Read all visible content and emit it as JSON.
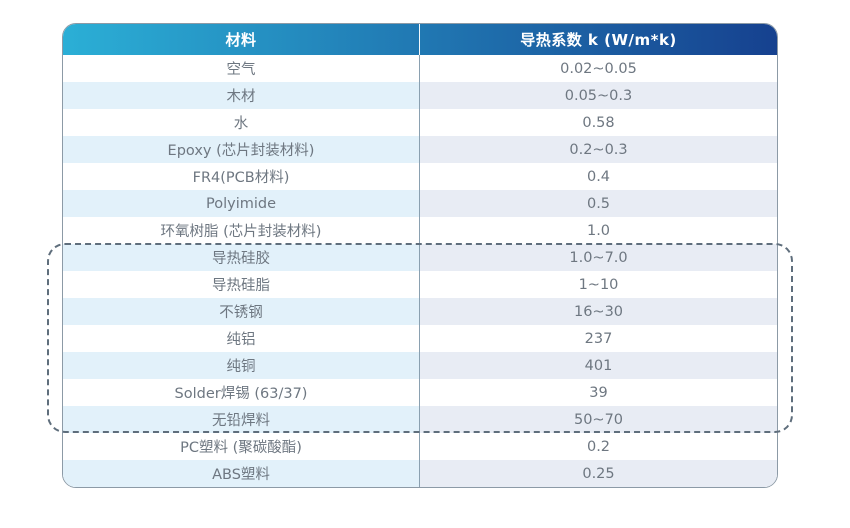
{
  "table": {
    "headers": [
      {
        "label": "材料"
      },
      {
        "label": "导热系数 k (W/m*k)"
      }
    ],
    "rows": [
      {
        "material": "空气",
        "k": "0.02~0.05"
      },
      {
        "material": "木材",
        "k": "0.05~0.3"
      },
      {
        "material": "水",
        "k": "0.58"
      },
      {
        "material": "Epoxy (芯片封装材料)",
        "k": "0.2~0.3"
      },
      {
        "material": "FR4(PCB材料)",
        "k": "0.4"
      },
      {
        "material": "Polyimide",
        "k": "0.5"
      },
      {
        "material": "环氧树脂 (芯片封装材料)",
        "k": "1.0"
      },
      {
        "material": "导热硅胶",
        "k": "1.0~7.0"
      },
      {
        "material": "导热硅脂",
        "k": "1~10"
      },
      {
        "material": "不锈钢",
        "k": "16~30"
      },
      {
        "material": "纯铝",
        "k": "237"
      },
      {
        "material": "纯铜",
        "k": "401"
      },
      {
        "material": "Solder焊锡 (63/37)",
        "k": "39"
      },
      {
        "material": "无铅焊料",
        "k": "50~70"
      },
      {
        "material": "PC塑料 (聚碳酸酯)",
        "k": "0.2"
      },
      {
        "material": "ABS塑料",
        "k": "0.25"
      }
    ]
  },
  "highlight_region": {
    "description": "dashed rounded rectangle emphasizing rows 导热硅胶 through 无铅焊料"
  },
  "colors": {
    "header_grad_start": "#2bafd6",
    "header_grad_end": "#16418f",
    "header_text": "#ffffff",
    "stripe_left": "#e2f1fa",
    "stripe_right": "#e8ecf4",
    "body_text": "#6e7781",
    "border": "#8c9aa6",
    "divider": "#8aa0b0",
    "dashed_box": "#5f6e7c"
  },
  "chart_data": {
    "type": "table",
    "title": "",
    "columns": [
      "材料",
      "导热系数 k (W/m*k)"
    ],
    "rows": [
      [
        "空气",
        "0.02~0.05"
      ],
      [
        "木材",
        "0.05~0.3"
      ],
      [
        "水",
        "0.58"
      ],
      [
        "Epoxy (芯片封装材料)",
        "0.2~0.3"
      ],
      [
        "FR4(PCB材料)",
        "0.4"
      ],
      [
        "Polyimide",
        "0.5"
      ],
      [
        "环氧树脂 (芯片封装材料)",
        "1.0"
      ],
      [
        "导热硅胶",
        "1.0~7.0"
      ],
      [
        "导热硅脂",
        "1~10"
      ],
      [
        "不锈钢",
        "16~30"
      ],
      [
        "纯铝",
        "237"
      ],
      [
        "纯铜",
        "401"
      ],
      [
        "Solder焊锡 (63/37)",
        "39"
      ],
      [
        "无铅焊料",
        "50~70"
      ],
      [
        "PC塑料 (聚碳酸酯)",
        "0.2"
      ],
      [
        "ABS塑料",
        "0.25"
      ]
    ],
    "highlighted_rows": [
      "导热硅胶",
      "导热硅脂",
      "不锈钢",
      "纯铝",
      "纯铜",
      "Solder焊锡 (63/37)",
      "无铅焊料"
    ],
    "legend_position": "none",
    "grid": false
  }
}
